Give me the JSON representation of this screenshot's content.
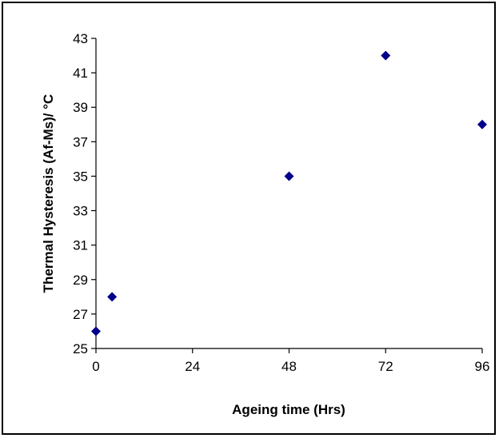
{
  "chart_data": {
    "type": "scatter",
    "title": "",
    "xlabel": "Ageing time  (Hrs)",
    "ylabel": "Thermal Hysteresis (Af-Ms)/    °C",
    "xlim": [
      0,
      96
    ],
    "ylim": [
      25,
      43
    ],
    "x_ticks": [
      0,
      24,
      48,
      72,
      96
    ],
    "y_ticks": [
      25,
      27,
      29,
      31,
      33,
      35,
      37,
      39,
      41,
      43
    ],
    "grid": false,
    "legend": "none",
    "series": [
      {
        "color": "#00008B",
        "marker": "diamond",
        "points": [
          {
            "x": 0,
            "y": 26
          },
          {
            "x": 4,
            "y": 28
          },
          {
            "x": 48,
            "y": 35
          },
          {
            "x": 72,
            "y": 42
          },
          {
            "x": 96,
            "y": 38
          }
        ]
      }
    ]
  }
}
